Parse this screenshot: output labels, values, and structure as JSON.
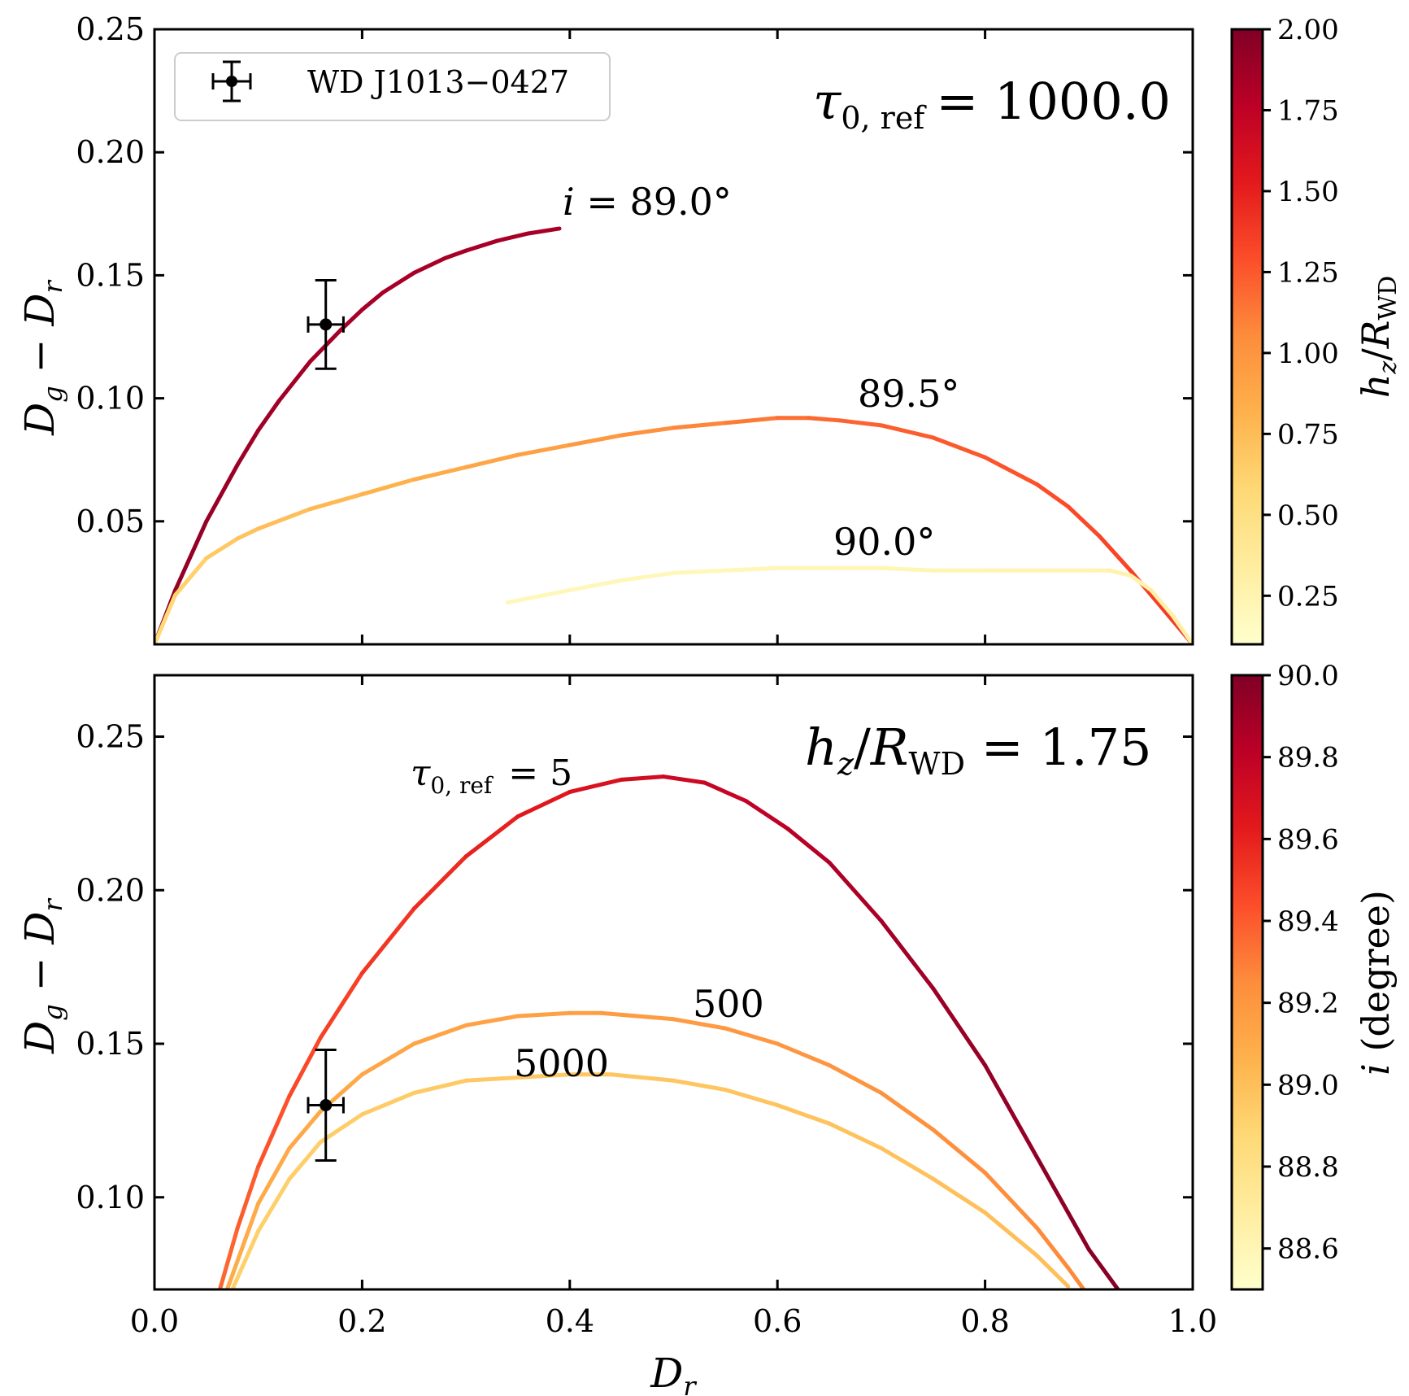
{
  "chart_data": [
    {
      "type": "line",
      "panel": "top",
      "annotation": {
        "prefix": "τ",
        "sub": "0, ref",
        "value": "= 1000.0"
      },
      "xlim": [
        0.0,
        1.0
      ],
      "ylim": [
        0.0,
        0.25
      ],
      "yticks": [
        "0.05",
        "0.10",
        "0.15",
        "0.20",
        "0.25"
      ],
      "ylabel": {
        "a": "D",
        "asub": "g",
        "minus": " − ",
        "b": "D",
        "bsub": "r"
      },
      "colorbar": {
        "label": {
          "a": "h",
          "asub": "z",
          "slash": "/",
          "b": "R",
          "bsub": "WD"
        },
        "range": [
          0.1,
          2.0
        ],
        "ticks": [
          "0.25",
          "0.50",
          "0.75",
          "1.00",
          "1.25",
          "1.50",
          "1.75",
          "2.00"
        ]
      },
      "series": [
        {
          "name": "i = 89.0°",
          "label": {
            "a": "i",
            "b": " = 89.0°"
          },
          "x": [
            0.0,
            0.02,
            0.05,
            0.08,
            0.1,
            0.12,
            0.15,
            0.18,
            0.2,
            0.22,
            0.25,
            0.28,
            0.3,
            0.33,
            0.36,
            0.39
          ],
          "y": [
            0.0,
            0.022,
            0.05,
            0.073,
            0.087,
            0.099,
            0.115,
            0.128,
            0.136,
            0.143,
            0.151,
            0.157,
            0.16,
            0.164,
            0.167,
            0.169
          ],
          "c": [
            1.95,
            1.93,
            1.91,
            1.89,
            1.88,
            1.87,
            1.86,
            1.86,
            1.85,
            1.85,
            1.85,
            1.85,
            1.85,
            1.85,
            1.85,
            1.85
          ]
        },
        {
          "name": "89.5°",
          "label": {
            "a": "",
            "b": "89.5°"
          },
          "x": [
            0.0,
            0.02,
            0.05,
            0.08,
            0.1,
            0.15,
            0.2,
            0.25,
            0.3,
            0.35,
            0.4,
            0.45,
            0.5,
            0.55,
            0.6,
            0.63,
            0.66,
            0.7,
            0.75,
            0.8,
            0.85,
            0.88,
            0.91,
            0.94,
            0.97,
            1.0
          ],
          "y": [
            0.0,
            0.02,
            0.035,
            0.043,
            0.047,
            0.055,
            0.061,
            0.067,
            0.072,
            0.077,
            0.081,
            0.085,
            0.088,
            0.09,
            0.092,
            0.092,
            0.091,
            0.089,
            0.084,
            0.076,
            0.065,
            0.056,
            0.044,
            0.03,
            0.015,
            0.0
          ],
          "c": [
            0.55,
            0.6,
            0.65,
            0.7,
            0.72,
            0.75,
            0.79,
            0.83,
            0.87,
            0.91,
            0.95,
            1.0,
            1.05,
            1.1,
            1.15,
            1.18,
            1.2,
            1.22,
            1.24,
            1.26,
            1.28,
            1.3,
            1.32,
            1.34,
            1.36,
            1.38
          ]
        },
        {
          "name": "90.0°",
          "label": {
            "a": "",
            "b": "90.0°"
          },
          "x": [
            0.34,
            0.4,
            0.45,
            0.5,
            0.55,
            0.6,
            0.65,
            0.7,
            0.75,
            0.8,
            0.85,
            0.9,
            0.92,
            0.94,
            0.96,
            0.98,
            1.0
          ],
          "y": [
            0.017,
            0.022,
            0.026,
            0.029,
            0.03,
            0.031,
            0.031,
            0.031,
            0.03,
            0.03,
            0.03,
            0.03,
            0.03,
            0.028,
            0.022,
            0.012,
            0.0
          ],
          "c": [
            0.2,
            0.2,
            0.2,
            0.21,
            0.21,
            0.22,
            0.22,
            0.23,
            0.23,
            0.24,
            0.24,
            0.25,
            0.26,
            0.27,
            0.28,
            0.3,
            0.32
          ]
        }
      ],
      "observation": {
        "name": "WD J1013−0427",
        "x": 0.165,
        "y": 0.13,
        "xerr": 0.017,
        "yerr": 0.018
      },
      "legend": {
        "position": "top-left",
        "label": "WD J1013−0427"
      }
    },
    {
      "type": "line",
      "panel": "bottom",
      "annotation": {
        "a": "h",
        "asub": "z",
        "slash": "/",
        "b": "R",
        "bsub": "WD",
        "value": " = 1.75"
      },
      "xlim": [
        0.0,
        1.0
      ],
      "ylim": [
        0.07,
        0.27
      ],
      "xticks": [
        "0.0",
        "0.2",
        "0.4",
        "0.6",
        "0.8",
        "1.0"
      ],
      "yticks": [
        "0.10",
        "0.15",
        "0.20",
        "0.25"
      ],
      "xlabel": {
        "a": "D",
        "asub": "r"
      },
      "ylabel": {
        "a": "D",
        "asub": "g",
        "minus": " − ",
        "b": "D",
        "bsub": "r"
      },
      "colorbar": {
        "label": {
          "a": "i",
          "b": " (degree)"
        },
        "range": [
          88.5,
          90.0
        ],
        "ticks": [
          "88.6",
          "88.8",
          "89.0",
          "89.2",
          "89.4",
          "89.6",
          "89.8",
          "90.0"
        ]
      },
      "series": [
        {
          "name": "τ0, ref = 5",
          "label": {
            "prefix": "τ",
            "sub": "0, ref",
            "value": " = 5"
          },
          "x": [
            0.063,
            0.08,
            0.1,
            0.13,
            0.16,
            0.2,
            0.25,
            0.3,
            0.35,
            0.4,
            0.45,
            0.49,
            0.53,
            0.57,
            0.61,
            0.65,
            0.7,
            0.75,
            0.8,
            0.85,
            0.88,
            0.9,
            0.928
          ],
          "y": [
            0.07,
            0.09,
            0.11,
            0.133,
            0.152,
            0.173,
            0.194,
            0.211,
            0.224,
            0.232,
            0.236,
            0.237,
            0.235,
            0.229,
            0.22,
            0.209,
            0.19,
            0.168,
            0.143,
            0.113,
            0.095,
            0.083,
            0.07
          ],
          "c": [
            89.35,
            89.38,
            89.41,
            89.44,
            89.47,
            89.5,
            89.54,
            89.58,
            89.62,
            89.66,
            89.7,
            89.73,
            89.76,
            89.79,
            89.82,
            89.85,
            89.88,
            89.91,
            89.93,
            89.95,
            89.96,
            89.97,
            89.98
          ]
        },
        {
          "name": "500",
          "label": {
            "value": "500"
          },
          "x": [
            0.07,
            0.1,
            0.13,
            0.16,
            0.2,
            0.25,
            0.3,
            0.35,
            0.4,
            0.43,
            0.5,
            0.55,
            0.6,
            0.65,
            0.7,
            0.75,
            0.8,
            0.85,
            0.88,
            0.895
          ],
          "y": [
            0.07,
            0.098,
            0.116,
            0.128,
            0.14,
            0.15,
            0.156,
            0.159,
            0.16,
            0.16,
            0.158,
            0.155,
            0.15,
            0.143,
            0.134,
            0.122,
            0.108,
            0.09,
            0.077,
            0.07
          ],
          "c": [
            89.1,
            89.1,
            89.11,
            89.11,
            89.12,
            89.13,
            89.14,
            89.15,
            89.16,
            89.17,
            89.18,
            89.19,
            89.2,
            89.21,
            89.22,
            89.23,
            89.24,
            89.25,
            89.26,
            89.26
          ]
        },
        {
          "name": "5000",
          "label": {
            "value": "5000"
          },
          "x": [
            0.075,
            0.1,
            0.13,
            0.16,
            0.2,
            0.25,
            0.3,
            0.35,
            0.4,
            0.44,
            0.5,
            0.55,
            0.6,
            0.65,
            0.7,
            0.75,
            0.8,
            0.85,
            0.88
          ],
          "y": [
            0.07,
            0.089,
            0.106,
            0.118,
            0.127,
            0.134,
            0.138,
            0.139,
            0.14,
            0.14,
            0.138,
            0.135,
            0.13,
            0.124,
            0.116,
            0.106,
            0.095,
            0.081,
            0.071
          ],
          "c": [
            88.92,
            88.92,
            88.93,
            88.93,
            88.94,
            88.94,
            88.95,
            88.95,
            88.96,
            88.96,
            88.97,
            88.97,
            88.98,
            88.98,
            88.99,
            88.99,
            89.0,
            89.0,
            89.01
          ]
        }
      ],
      "observation": {
        "name": "WD J1013−0427",
        "x": 0.165,
        "y": 0.13,
        "xerr": 0.017,
        "yerr": 0.018
      }
    }
  ]
}
